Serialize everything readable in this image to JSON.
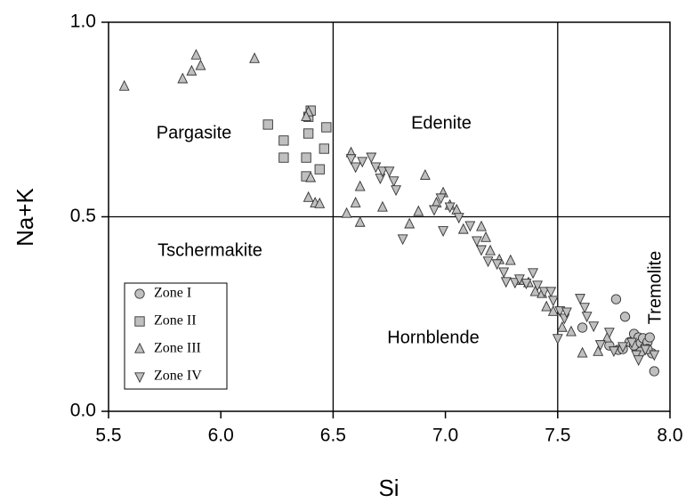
{
  "chart_data": {
    "type": "scatter",
    "x_label": "Si",
    "y_label": "Na+K",
    "xlim": [
      5.5,
      8.0
    ],
    "ylim": [
      0,
      1.0
    ],
    "xticks": [
      5.5,
      {
        "value": 6,
        "label": "6.0"
      },
      6.5,
      {
        "value": 7,
        "label": "7.0"
      },
      7.5,
      {
        "value": 8,
        "label": "8.0"
      }
    ],
    "yticks": [
      {
        "value": 0,
        "label": "0.0"
      },
      0.5,
      {
        "value": 1,
        "label": "1.0"
      }
    ],
    "vlines": [
      6.5,
      7.5
    ],
    "hlines": [
      0.5
    ],
    "annotations": [
      "Pargasite",
      "Edenite",
      "Tschermakite",
      "Hornblende",
      "Tremolite"
    ],
    "series": [
      {
        "name": "Zone I",
        "marker": "circle",
        "color": "#c0c0c0",
        "x": [
          7.61,
          7.76,
          7.8,
          7.73,
          7.77,
          7.79,
          7.82,
          7.84,
          7.84,
          7.86,
          7.87,
          7.88,
          7.89,
          7.9,
          7.91,
          7.92,
          7.93,
          7.87,
          7.9
        ],
        "values": [
          0.215,
          0.288,
          0.243,
          0.169,
          0.158,
          0.16,
          0.178,
          0.199,
          0.169,
          0.19,
          0.176,
          0.188,
          0.165,
          0.178,
          0.19,
          0.149,
          0.103,
          0.153,
          0.16
        ]
      },
      {
        "name": "Zone II",
        "marker": "square",
        "color": "#c0c0c0",
        "x": [
          6.21,
          6.28,
          6.28,
          6.38,
          6.38,
          6.39,
          6.39,
          6.4,
          6.44,
          6.46,
          6.47
        ],
        "values": [
          0.737,
          0.696,
          0.652,
          0.652,
          0.604,
          0.714,
          0.757,
          0.773,
          0.622,
          0.675,
          0.73
        ]
      },
      {
        "name": "Zone III",
        "marker": "triangle-up",
        "color": "#c0c0c0",
        "x": [
          5.57,
          5.83,
          5.87,
          5.89,
          5.91,
          6.15,
          6.39,
          6.38,
          6.4,
          6.39,
          6.42,
          6.44,
          6.56,
          6.58,
          6.6,
          6.62,
          6.62,
          6.72,
          6.84,
          6.88,
          6.91,
          6.96,
          6.99,
          7.02,
          7.05,
          7.08,
          7.16,
          7.18,
          7.2,
          7.24,
          7.29,
          7.33,
          7.37,
          7.4,
          7.43,
          7.45,
          7.48,
          7.52,
          7.56,
          7.61,
          7.68,
          7.72
        ],
        "values": [
          0.835,
          0.854,
          0.874,
          0.915,
          0.888,
          0.906,
          0.769,
          0.757,
          0.6,
          0.549,
          0.535,
          0.533,
          0.508,
          0.664,
          0.535,
          0.485,
          0.577,
          0.524,
          0.481,
          0.513,
          0.606,
          0.535,
          0.561,
          0.529,
          0.517,
          0.467,
          0.474,
          0.446,
          0.412,
          0.389,
          0.387,
          0.336,
          0.33,
          0.307,
          0.302,
          0.268,
          0.256,
          0.215,
          0.204,
          0.149,
          0.153,
          0.188
        ]
      },
      {
        "name": "Zone IV",
        "marker": "triangle-down",
        "color": "#c0c0c0",
        "x": [
          6.58,
          6.6,
          6.63,
          6.67,
          6.69,
          6.71,
          6.72,
          6.75,
          6.77,
          6.78,
          6.81,
          6.95,
          6.98,
          6.99,
          7.02,
          7.06,
          7.11,
          7.14,
          7.16,
          7.19,
          7.23,
          7.26,
          7.27,
          7.31,
          7.33,
          7.36,
          7.39,
          7.41,
          7.44,
          7.47,
          7.48,
          7.51,
          7.53,
          7.5,
          7.54,
          7.6,
          7.62,
          7.63,
          7.66,
          7.69,
          7.73,
          7.75,
          7.79,
          7.83,
          7.85,
          7.86,
          7.89,
          7.93
        ],
        "values": [
          0.65,
          0.629,
          0.643,
          0.654,
          0.629,
          0.6,
          0.618,
          0.618,
          0.593,
          0.57,
          0.444,
          0.519,
          0.549,
          0.465,
          0.526,
          0.499,
          0.478,
          0.439,
          0.416,
          0.387,
          0.38,
          0.359,
          0.334,
          0.332,
          0.341,
          0.33,
          0.357,
          0.325,
          0.309,
          0.309,
          0.286,
          0.259,
          0.24,
          0.188,
          0.256,
          0.291,
          0.268,
          0.245,
          0.22,
          0.172,
          0.204,
          0.156,
          0.167,
          0.178,
          0.146,
          0.133,
          0.16,
          0.146
        ]
      }
    ]
  }
}
